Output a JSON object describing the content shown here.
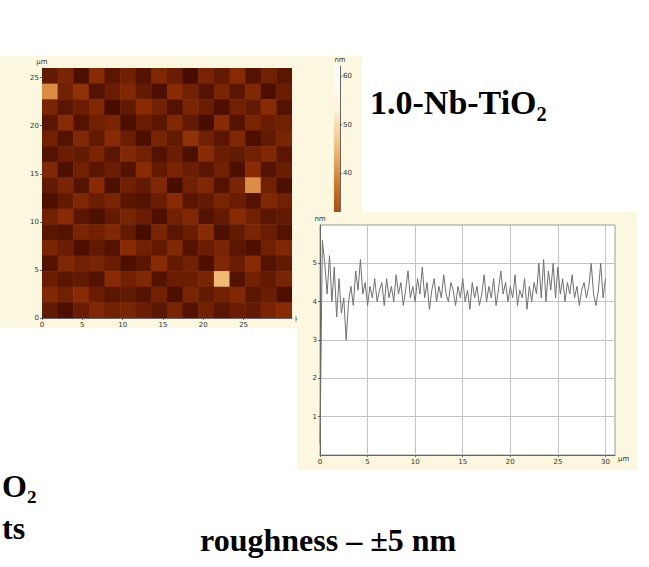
{
  "title": "1.0-Nb-TiO₂",
  "caption": "roughness – ±5 nm",
  "fragments": [
    "O₂",
    "ts"
  ],
  "chart_data": [
    {
      "type": "heatmap",
      "x_label": "µm",
      "y_label": "µm",
      "xlim": [
        0,
        31
      ],
      "ylim": [
        0,
        26
      ],
      "xticks": [
        0,
        5,
        10,
        15,
        20,
        25
      ],
      "yticks": [
        0,
        5,
        10,
        15,
        20,
        25
      ],
      "cells": [
        [
          22,
          25,
          19,
          27,
          21,
          24,
          20,
          26,
          23,
          18,
          25,
          22,
          27,
          20,
          24,
          21
        ],
        [
          40,
          24,
          28,
          20,
          23,
          26,
          22,
          19,
          27,
          24,
          20,
          25,
          21,
          26,
          19,
          23
        ],
        [
          25,
          21,
          23,
          26,
          18,
          22,
          27,
          24,
          20,
          25,
          23,
          19,
          24,
          22,
          27,
          20
        ],
        [
          21,
          27,
          20,
          24,
          25,
          19,
          23,
          21,
          26,
          22,
          18,
          27,
          20,
          25,
          23,
          24
        ],
        [
          24,
          20,
          26,
          22,
          27,
          23,
          19,
          25,
          22,
          28,
          24,
          21,
          26,
          19,
          22,
          25
        ],
        [
          20,
          23,
          22,
          25,
          21,
          26,
          24,
          20,
          23,
          19,
          27,
          23,
          22,
          24,
          26,
          21
        ],
        [
          26,
          19,
          24,
          21,
          23,
          20,
          27,
          22,
          25,
          23,
          21,
          24,
          19,
          27,
          20,
          23
        ],
        [
          22,
          25,
          20,
          27,
          19,
          24,
          22,
          26,
          18,
          24,
          26,
          20,
          25,
          40,
          24,
          19
        ],
        [
          19,
          22,
          26,
          23,
          25,
          21,
          20,
          23,
          27,
          21,
          22,
          25,
          23,
          20,
          26,
          24
        ],
        [
          24,
          27,
          21,
          19,
          22,
          25,
          23,
          19,
          24,
          26,
          20,
          22,
          27,
          24,
          21,
          22
        ],
        [
          21,
          20,
          25,
          24,
          26,
          22,
          18,
          25,
          21,
          23,
          27,
          19,
          22,
          25,
          23,
          20
        ],
        [
          25,
          23,
          19,
          22,
          20,
          27,
          24,
          22,
          26,
          20,
          23,
          25,
          21,
          19,
          24,
          26
        ],
        [
          20,
          26,
          24,
          25,
          23,
          19,
          21,
          27,
          22,
          24,
          19,
          26,
          23,
          27,
          20,
          22
        ],
        [
          23,
          21,
          22,
          20,
          27,
          24,
          26,
          20,
          23,
          23,
          25,
          45,
          20,
          24,
          22,
          25
        ],
        [
          26,
          24,
          27,
          23,
          21,
          22,
          20,
          24,
          19,
          25,
          22,
          24,
          26,
          21,
          23,
          19
        ],
        [
          22,
          19,
          23,
          26,
          24,
          25,
          23,
          21,
          25,
          20,
          24,
          21,
          23,
          22,
          25,
          27
        ]
      ],
      "color_range": [
        10,
        62
      ],
      "color_ticks": [
        40,
        50,
        60
      ],
      "color_label": "nm"
    },
    {
      "type": "line",
      "x_label": "µm",
      "y_label": "nm",
      "xlim": [
        0,
        31
      ],
      "ylim": [
        0,
        6
      ],
      "xticks": [
        0,
        5,
        10,
        15,
        20,
        25,
        30
      ],
      "yticks": [
        1,
        2,
        3,
        4,
        5
      ],
      "grid": true,
      "color": "#707070",
      "x": [
        0,
        0.25,
        0.5,
        0.75,
        1,
        1.25,
        1.5,
        1.75,
        2,
        2.25,
        2.5,
        2.75,
        3,
        3.25,
        3.5,
        3.75,
        4,
        4.25,
        4.5,
        4.75,
        5,
        5.25,
        5.5,
        5.75,
        6,
        6.25,
        6.5,
        6.75,
        7,
        7.25,
        7.5,
        7.75,
        8,
        8.25,
        8.5,
        8.75,
        9,
        9.25,
        9.5,
        9.75,
        10,
        10.25,
        10.5,
        10.75,
        11,
        11.25,
        11.5,
        11.75,
        12,
        12.25,
        12.5,
        12.75,
        13,
        13.25,
        13.5,
        13.75,
        14,
        14.25,
        14.5,
        14.75,
        15,
        15.25,
        15.5,
        15.75,
        16,
        16.25,
        16.5,
        16.75,
        17,
        17.25,
        17.5,
        17.75,
        18,
        18.25,
        18.5,
        18.75,
        19,
        19.25,
        19.5,
        19.75,
        20,
        20.25,
        20.5,
        20.75,
        21,
        21.25,
        21.5,
        21.75,
        22,
        22.25,
        22.5,
        22.75,
        23,
        23.25,
        23.5,
        23.75,
        24,
        24.25,
        24.5,
        24.75,
        25,
        25.25,
        25.5,
        25.75,
        26,
        26.25,
        26.5,
        26.75,
        27,
        27.25,
        27.5,
        27.75,
        28,
        28.25,
        28.5,
        28.75,
        29,
        29.25,
        29.5,
        29.75,
        30
      ],
      "values": [
        0.3,
        5.6,
        5.0,
        4.2,
        5.2,
        4.0,
        4.9,
        3.6,
        4.6,
        3.7,
        4.1,
        3.0,
        4.0,
        4.4,
        3.9,
        4.8,
        4.3,
        5.1,
        4.2,
        4.5,
        3.9,
        4.4,
        4.1,
        4.6,
        4.0,
        4.3,
        4.5,
        3.9,
        4.6,
        4.1,
        4.4,
        4.0,
        4.7,
        4.2,
        4.5,
        3.9,
        4.3,
        4.8,
        4.1,
        4.4,
        4.0,
        4.6,
        4.2,
        4.9,
        4.1,
        4.5,
        3.8,
        4.3,
        4.6,
        4.0,
        4.4,
        4.1,
        4.7,
        4.2,
        4.0,
        4.5,
        4.3,
        3.9,
        4.4,
        4.1,
        4.6,
        4.0,
        4.3,
        3.8,
        4.5,
        4.1,
        4.4,
        3.9,
        4.2,
        4.7,
        4.0,
        4.4,
        4.1,
        4.6,
        3.9,
        4.3,
        4.8,
        4.2,
        4.5,
        4.0,
        4.4,
        4.1,
        4.7,
        3.9,
        4.3,
        4.1,
        4.6,
        3.8,
        4.4,
        4.0,
        4.5,
        4.2,
        5.0,
        4.1,
        5.1,
        4.0,
        4.8,
        4.3,
        5.0,
        4.1,
        4.9,
        4.2,
        4.6,
        4.0,
        4.5,
        4.2,
        4.7,
        4.1,
        4.4,
        3.9,
        4.3,
        4.5,
        4.1,
        4.4,
        5.0,
        4.2,
        3.9,
        4.3,
        5.0,
        4.1,
        4.6
      ]
    }
  ]
}
